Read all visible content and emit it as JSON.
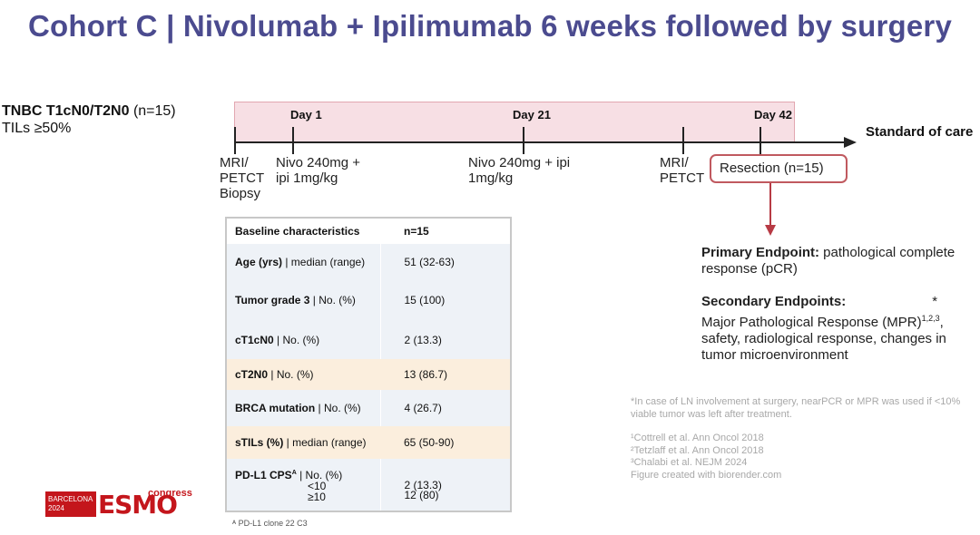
{
  "title": "Cohort C | Nivolumab + Ipilimumab 6 weeks followed by surgery",
  "cohort": {
    "name": "TNBC T1cN0/T2N0",
    "n": "(n=15)",
    "tils": "TILs ≥50%"
  },
  "timeline": {
    "days": [
      "Day 1",
      "Day 21",
      "Day 42"
    ],
    "standard_of_care": "Standard of care",
    "events": {
      "baseline": [
        "MRI/",
        "PETCT",
        "Biopsy"
      ],
      "dose1": [
        "Nivo 240mg +",
        "ipi 1mg/kg"
      ],
      "dose2": [
        "Nivo 240mg + ipi",
        "1mg/kg"
      ],
      "presurgery": [
        "MRI/",
        "PETCT"
      ]
    },
    "resection": "Resection (n=15)"
  },
  "endpoints": {
    "primary_label": "Primary Endpoint:",
    "primary_text": " pathological complete response (pCR)",
    "secondary_label": "Secondary Endpoints:",
    "asterisk": "*",
    "secondary_text_1": "Major Pathological Response (MPR)",
    "secondary_sup": "1,2,3",
    "secondary_text_2": ", safety, radiological response, changes in tumor microenvironment"
  },
  "footnote_lnpcr": "*In case of LN involvement at surgery, nearPCR or MPR was used if <10% viable tumor was left after treatment.",
  "references": [
    "¹Cottrell et al. Ann Oncol 2018",
    "²Tetzlaff et al. Ann Oncol 2018",
    "³Chalabi et al. NEJM 2024",
    "Figure created with biorender.com"
  ],
  "baseline_table": {
    "header": [
      "Baseline characteristics",
      "n=15"
    ],
    "rows": [
      {
        "bold": "Age (yrs)",
        "rest": " | median (range)",
        "value": "51 (32-63)"
      },
      {
        "bold": "Tumor grade 3",
        "rest": " | No. (%)",
        "value": "15 (100)"
      },
      {
        "bold": "cT1cN0",
        "rest": " | No. (%)",
        "value": "2 (13.3)"
      },
      {
        "bold": "cT2N0",
        "rest": " | No. (%)",
        "value": "13 (86.7)"
      },
      {
        "bold": "BRCA mutation",
        "rest": " | No. (%)",
        "value": "4 (26.7)"
      },
      {
        "bold": "sTILs (%)",
        "rest": " | median (range)",
        "value": "65 (50-90)"
      },
      {
        "bold": "PD-L1 CPS",
        "sup": "A",
        "rest": " | No. (%)",
        "sub1": "<10",
        "sub2": "≥10",
        "value1": "2 (13.3)",
        "value2": "12 (80)"
      }
    ],
    "footnote": "ᴬ PD-L1 clone 22 C3"
  },
  "logo": {
    "city": "BARCELONA",
    "year": "2024",
    "brand": "ESMO",
    "congress": "congress"
  },
  "colors": {
    "title": "#4b4b8f",
    "band": "#f7dfe4",
    "resection_border": "#c0595f",
    "arrow": "#b73a44",
    "row_blue": "#eef2f7",
    "row_tan": "#fbeedd",
    "esmo_red": "#c4161c"
  }
}
